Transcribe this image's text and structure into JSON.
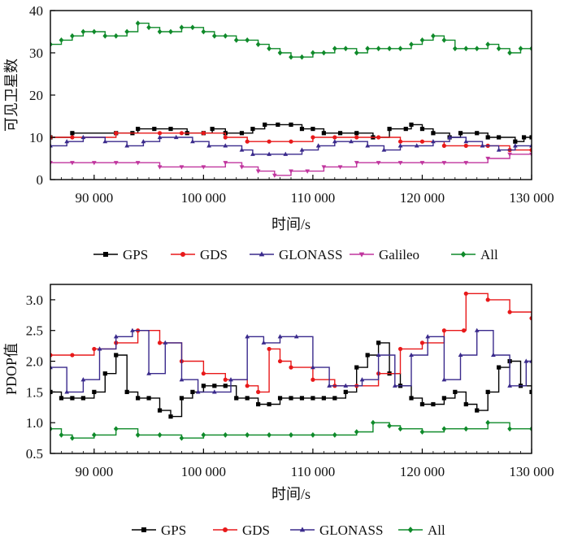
{
  "chart_data": [
    {
      "type": "line",
      "ylabel": "可见卫星数",
      "xlabel": "时间/s",
      "xlim": [
        86000,
        130000
      ],
      "ylim": [
        0,
        40
      ],
      "xticks": [
        90000,
        100000,
        110000,
        120000,
        130000
      ],
      "xtick_labels": [
        "90 000",
        "100 000",
        "110 000",
        "120 000",
        "130 000"
      ],
      "yticks": [
        0,
        10,
        20,
        30,
        40
      ],
      "ytick_labels": [
        "0",
        "10",
        "20",
        "30",
        "40"
      ],
      "legend_position": "bottom",
      "series": [
        {
          "name": "GPS",
          "color": "#000000",
          "marker": "square",
          "x": [
            86000,
            88000,
            92000,
            93500,
            94000,
            95500,
            97000,
            98500,
            100000,
            100800,
            102000,
            103500,
            104500,
            105600,
            106800,
            108000,
            109000,
            110000,
            111000,
            112500,
            114000,
            115500,
            117000,
            118500,
            119000,
            120000,
            121000,
            122500,
            123500,
            125000,
            126000,
            127000,
            128500,
            129300,
            130000
          ],
          "y": [
            10,
            11,
            11,
            11,
            12,
            12,
            12,
            11,
            11,
            12,
            11,
            11,
            12,
            13,
            13,
            13,
            12,
            12,
            11,
            11,
            11,
            10,
            12,
            12,
            13,
            12,
            11,
            10,
            11,
            11,
            10,
            10,
            9,
            10,
            10
          ]
        },
        {
          "name": "GDS",
          "color": "#e8191a",
          "marker": "circle",
          "x": [
            86000,
            88000,
            92000,
            96000,
            98000,
            100000,
            102000,
            104000,
            106000,
            108000,
            110000,
            112000,
            114000,
            116000,
            118000,
            120000,
            122000,
            124000,
            126000,
            128000,
            130000
          ],
          "y": [
            10,
            10,
            11,
            11,
            11,
            11,
            10,
            9,
            9,
            9,
            10,
            10,
            10,
            10,
            9,
            9,
            8,
            8,
            8,
            7,
            7
          ]
        },
        {
          "name": "GLONASS",
          "color": "#3a2a8c",
          "marker": "triangle",
          "x": [
            86000,
            87500,
            89000,
            91000,
            93000,
            94500,
            96000,
            97500,
            99000,
            100500,
            102000,
            103500,
            104500,
            106000,
            107500,
            109000,
            110500,
            112000,
            113500,
            115000,
            116500,
            118000,
            119500,
            121000,
            122500,
            124000,
            125500,
            127000,
            128500,
            130000
          ],
          "y": [
            8,
            9,
            10,
            9,
            8,
            9,
            10,
            10,
            9,
            8,
            8,
            7,
            6,
            6,
            6,
            7,
            8,
            9,
            9,
            8,
            7,
            8,
            8,
            9,
            10,
            9,
            8,
            7,
            8,
            8
          ]
        },
        {
          "name": "Galileo",
          "color": "#c0359e",
          "marker": "triangle-down",
          "x": [
            86000,
            88000,
            90000,
            92000,
            94000,
            96000,
            98000,
            100000,
            102000,
            103500,
            105000,
            106500,
            108000,
            109500,
            111000,
            112500,
            114000,
            116000,
            118000,
            120000,
            122000,
            124000,
            126000,
            128000,
            130000
          ],
          "y": [
            4,
            4,
            4,
            4,
            4,
            3,
            3,
            3,
            4,
            3,
            2,
            1,
            2,
            2,
            3,
            3,
            4,
            4,
            4,
            4,
            4,
            4,
            5,
            6,
            6
          ]
        },
        {
          "name": "All",
          "color": "#0f8a2a",
          "marker": "diamond",
          "x": [
            86000,
            87000,
            88000,
            89000,
            90000,
            91000,
            92000,
            93000,
            94000,
            95000,
            96000,
            97000,
            98000,
            99000,
            100000,
            101000,
            102000,
            103000,
            104000,
            105000,
            106000,
            107000,
            108000,
            109000,
            110000,
            111000,
            112000,
            113000,
            114000,
            115000,
            116000,
            117000,
            118000,
            119000,
            120000,
            121000,
            122000,
            123000,
            124000,
            125000,
            126000,
            127000,
            128000,
            129000,
            130000
          ],
          "y": [
            32,
            33,
            34,
            35,
            35,
            34,
            34,
            35,
            37,
            36,
            35,
            35,
            36,
            36,
            35,
            34,
            34,
            33,
            33,
            32,
            31,
            30,
            29,
            29,
            30,
            30,
            31,
            31,
            30,
            31,
            31,
            31,
            31,
            32,
            33,
            34,
            33,
            31,
            31,
            31,
            32,
            31,
            30,
            31,
            31
          ]
        }
      ]
    },
    {
      "type": "line",
      "ylabel": "PDOP值",
      "xlabel": "时间/s",
      "xlim": [
        86000,
        130000
      ],
      "ylim": [
        0.5,
        3.25
      ],
      "xticks": [
        90000,
        100000,
        110000,
        120000,
        130000
      ],
      "xtick_labels": [
        "90 000",
        "100 000",
        "110 000",
        "120 000",
        "130 000"
      ],
      "yticks": [
        0.5,
        1.0,
        1.5,
        2.0,
        2.5,
        3.0
      ],
      "ytick_labels": [
        "0.5",
        "1.0",
        "1.5",
        "2.0",
        "2.5",
        "3.0"
      ],
      "legend_position": "bottom",
      "series": [
        {
          "name": "GPS",
          "color": "#000000",
          "marker": "square",
          "x": [
            86000,
            87000,
            88000,
            89000,
            90000,
            91000,
            92000,
            93000,
            94000,
            95000,
            96000,
            97000,
            98000,
            99000,
            100000,
            101000,
            102000,
            103000,
            104000,
            105000,
            106000,
            107000,
            108000,
            109000,
            110000,
            111000,
            112000,
            113000,
            114000,
            115000,
            116000,
            117000,
            118000,
            119000,
            120000,
            121000,
            122000,
            123000,
            124000,
            125000,
            126000,
            127000,
            128000,
            129000,
            130000
          ],
          "y": [
            1.5,
            1.4,
            1.4,
            1.4,
            1.5,
            1.8,
            2.1,
            1.5,
            1.4,
            1.4,
            1.2,
            1.1,
            1.4,
            1.5,
            1.6,
            1.6,
            1.6,
            1.4,
            1.4,
            1.3,
            1.3,
            1.4,
            1.4,
            1.4,
            1.4,
            1.4,
            1.4,
            1.5,
            1.9,
            2.1,
            2.3,
            1.8,
            1.6,
            1.4,
            1.3,
            1.3,
            1.4,
            1.5,
            1.3,
            1.2,
            1.5,
            1.9,
            2.0,
            1.6,
            1.5
          ]
        },
        {
          "name": "GDS",
          "color": "#e8191a",
          "marker": "circle",
          "x": [
            86000,
            88000,
            90000,
            92000,
            94000,
            96000,
            98000,
            100000,
            102000,
            104000,
            105000,
            106000,
            107000,
            108000,
            110000,
            112000,
            114000,
            116000,
            118000,
            120000,
            122000,
            123800,
            124000,
            126000,
            128000,
            130000
          ],
          "y": [
            2.1,
            2.1,
            2.2,
            2.3,
            2.5,
            2.3,
            2.0,
            1.8,
            1.7,
            1.6,
            1.5,
            2.2,
            2.0,
            1.9,
            1.7,
            1.6,
            1.6,
            1.8,
            2.2,
            2.3,
            2.5,
            2.5,
            3.1,
            3.0,
            2.8,
            2.7
          ]
        },
        {
          "name": "GLONASS",
          "color": "#3a2a8c",
          "marker": "triangle",
          "x": [
            86000,
            87500,
            89000,
            90500,
            92000,
            93500,
            95000,
            96500,
            98000,
            99500,
            101000,
            102500,
            104000,
            105500,
            107000,
            108500,
            110000,
            111500,
            113000,
            114500,
            116000,
            117500,
            119000,
            120500,
            122000,
            123500,
            125000,
            126500,
            128000,
            129500,
            130000
          ],
          "y": [
            1.9,
            1.5,
            1.7,
            2.2,
            2.4,
            2.5,
            1.8,
            2.3,
            1.7,
            1.5,
            1.5,
            1.7,
            2.4,
            2.3,
            2.4,
            2.4,
            1.9,
            1.6,
            1.6,
            1.7,
            2.1,
            1.6,
            2.1,
            2.4,
            1.7,
            2.1,
            2.5,
            2.1,
            1.6,
            2.0,
            2.0
          ]
        },
        {
          "name": "All",
          "color": "#0f8a2a",
          "marker": "diamond",
          "x": [
            86000,
            87000,
            88000,
            90000,
            92000,
            94000,
            96000,
            98000,
            100000,
            102000,
            104000,
            106000,
            108000,
            110000,
            112000,
            114000,
            115500,
            117000,
            118000,
            120000,
            122000,
            124000,
            126000,
            128000,
            130000
          ],
          "y": [
            0.9,
            0.8,
            0.75,
            0.8,
            0.9,
            0.8,
            0.8,
            0.75,
            0.8,
            0.8,
            0.8,
            0.8,
            0.8,
            0.8,
            0.8,
            0.85,
            1.0,
            0.95,
            0.9,
            0.85,
            0.9,
            0.9,
            1.0,
            0.9,
            0.9
          ]
        }
      ]
    }
  ],
  "legends": [
    [
      {
        "label": "GPS",
        "color": "#000000",
        "marker": "square"
      },
      {
        "label": "GDS",
        "color": "#e8191a",
        "marker": "circle"
      },
      {
        "label": "GLONASS",
        "color": "#3a2a8c",
        "marker": "triangle"
      },
      {
        "label": "Galileo",
        "color": "#c0359e",
        "marker": "triangle-down"
      },
      {
        "label": "All",
        "color": "#0f8a2a",
        "marker": "diamond"
      }
    ],
    [
      {
        "label": "GPS",
        "color": "#000000",
        "marker": "square"
      },
      {
        "label": "GDS",
        "color": "#e8191a",
        "marker": "circle"
      },
      {
        "label": "GLONASS",
        "color": "#3a2a8c",
        "marker": "triangle"
      },
      {
        "label": "All",
        "color": "#0f8a2a",
        "marker": "diamond"
      }
    ]
  ]
}
